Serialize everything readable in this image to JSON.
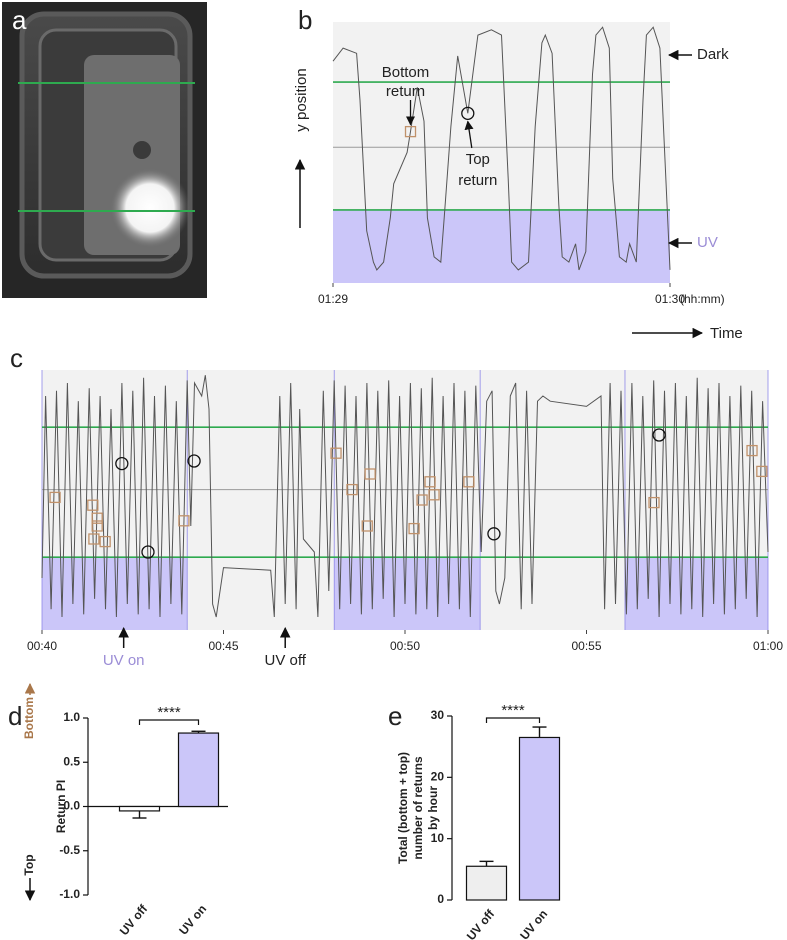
{
  "image_panel": {
    "label": "a"
  },
  "chart_data": [
    {
      "type": "line",
      "label": "b",
      "ylabel": "y position",
      "xlabel": "Time",
      "xunit": "(hh:mm)",
      "x": [
        89,
        89.03,
        89.07,
        89.08,
        89.1,
        89.12,
        89.13,
        89.15,
        89.17,
        89.18,
        89.22,
        89.23,
        89.25,
        89.27,
        89.28,
        89.3,
        89.32,
        89.33,
        89.35,
        89.37,
        89.4,
        89.42,
        89.43,
        89.47,
        89.5,
        89.52,
        89.53,
        89.55,
        89.58,
        89.6,
        89.62,
        89.63,
        89.65,
        89.67,
        89.68,
        89.7,
        89.72,
        89.73,
        89.75,
        89.77,
        89.78,
        89.8,
        89.82,
        89.83,
        89.85,
        89.87,
        89.88,
        89.9,
        89.92,
        89.93,
        89.95,
        89.97,
        90
      ],
      "values": [
        85,
        90,
        88,
        70,
        20,
        8,
        5,
        8,
        25,
        38,
        50,
        58,
        75,
        62,
        25,
        10,
        8,
        25,
        60,
        87,
        65,
        85,
        95,
        97,
        95,
        40,
        8,
        5,
        8,
        60,
        92,
        95,
        88,
        30,
        10,
        8,
        15,
        5,
        12,
        80,
        95,
        98,
        90,
        40,
        10,
        8,
        15,
        8,
        70,
        95,
        98,
        90,
        5
      ],
      "color": "#555555",
      "xlim": [
        89,
        90
      ],
      "xticks": [
        {
          "value": 89,
          "label": "01:29"
        },
        {
          "value": 90,
          "label": "01:30"
        }
      ],
      "ylim": [
        0,
        100
      ],
      "uv_level": 28,
      "dark_level": 77,
      "mid_level": 52,
      "region_colors": {
        "uv": "#cbc6f9",
        "dark": "#f2f2f2"
      },
      "threshold_color": "#2eaa4f",
      "bottom_returns": {
        "x": [
          89.23
        ],
        "values": [
          58
        ],
        "color": "#c0916a"
      },
      "top_returns": {
        "x": [
          89.4
        ],
        "values": [
          65
        ],
        "color": "#111111"
      },
      "annotations": {
        "dark": "Dark",
        "uv": "UV",
        "bottom_return": [
          "Bottom",
          "return"
        ],
        "top_return": [
          "Top",
          "return"
        ]
      },
      "uv_text_color": "#9b8dd6"
    },
    {
      "type": "line",
      "label": "c",
      "x": [
        40,
        40.1,
        40.25,
        40.4,
        40.55,
        40.7,
        40.85,
        41,
        41.15,
        41.3,
        41.45,
        41.6,
        41.75,
        41.9,
        42.05,
        42.2,
        42.35,
        42.5,
        42.65,
        42.8,
        42.95,
        43.1,
        43.25,
        43.4,
        43.55,
        43.7,
        43.85,
        44,
        44.1,
        44.2,
        44.4,
        44.5,
        44.6,
        44.7,
        44.8,
        45,
        46.3,
        46.4,
        46.55,
        46.7,
        46.85,
        47,
        47.1,
        47.2,
        47.5,
        47.6,
        47.75,
        47.9,
        48.05,
        48.2,
        48.35,
        48.5,
        48.65,
        48.8,
        48.95,
        49.1,
        49.25,
        49.4,
        49.55,
        49.7,
        49.85,
        50,
        50.15,
        50.3,
        50.45,
        50.6,
        50.75,
        50.9,
        51.05,
        51.2,
        51.35,
        51.5,
        51.65,
        51.8,
        51.95,
        52.1,
        52.25,
        52.4,
        52.5,
        52.6,
        52.75,
        52.9,
        53.05,
        53.2,
        53.35,
        53.5,
        53.65,
        53.8,
        54,
        55,
        55.4,
        55.5,
        55.65,
        55.8,
        55.95,
        56.1,
        56.25,
        56.4,
        56.55,
        56.7,
        56.85,
        57,
        57.15,
        57.3,
        57.45,
        57.6,
        57.75,
        57.9,
        58.05,
        58.2,
        58.35,
        58.5,
        58.65,
        58.8,
        58.95,
        59.1,
        59.25,
        59.4,
        59.55,
        59.7,
        59.85,
        60
      ],
      "values": [
        20,
        90,
        8,
        92,
        5,
        95,
        10,
        88,
        6,
        93,
        12,
        90,
        8,
        85,
        5,
        95,
        10,
        92,
        6,
        97,
        8,
        90,
        5,
        94,
        10,
        88,
        6,
        96,
        40,
        95,
        90,
        98,
        85,
        10,
        5,
        24,
        23,
        5,
        90,
        10,
        95,
        8,
        85,
        35,
        30,
        5,
        92,
        15,
        96,
        8,
        94,
        10,
        90,
        6,
        95,
        8,
        92,
        12,
        96,
        5,
        90,
        10,
        95,
        6,
        93,
        8,
        97,
        5,
        90,
        10,
        95,
        8,
        92,
        5,
        94,
        30,
        88,
        92,
        15,
        10,
        20,
        90,
        95,
        8,
        92,
        10,
        88,
        90,
        88,
        86,
        90,
        8,
        95,
        10,
        92,
        6,
        95,
        8,
        90,
        12,
        96,
        5,
        92,
        10,
        95,
        6,
        90,
        8,
        97,
        5,
        93,
        10,
        95,
        6,
        90,
        8,
        94,
        12,
        92,
        5,
        88,
        30
      ],
      "color": "#555555",
      "xlim": [
        40,
        60
      ],
      "xticks": [
        {
          "value": 40,
          "label": "00:40"
        },
        {
          "value": 45,
          "label": "00:45"
        },
        {
          "value": 50,
          "label": "00:50"
        },
        {
          "value": 55,
          "label": "00:55"
        },
        {
          "value": 60,
          "label": "01:00"
        }
      ],
      "ylim": [
        0,
        100
      ],
      "uv_level": 28,
      "dark_level": 78,
      "mid_level": 54,
      "uv_periods": [
        [
          40,
          44
        ],
        [
          48.05,
          52.07
        ],
        [
          56.06,
          60
        ]
      ],
      "region_colors": {
        "uv": "#cbc6f9",
        "dark": "#f2f2f2"
      },
      "threshold_color": "#2eaa4f",
      "period_line_color": "#8f88e8",
      "bottom_returns": {
        "x": [
          40.36,
          41.4,
          41.52,
          41.52,
          41.43,
          41.74,
          43.91,
          48.1,
          49.04,
          48.54,
          48.96,
          50.25,
          50.47,
          50.69,
          50.8,
          51.76,
          56.86,
          59.56,
          59.83
        ],
        "values": [
          51,
          48,
          43,
          40,
          35,
          34,
          42,
          68,
          60,
          54,
          40,
          39,
          50,
          57,
          52,
          57,
          49,
          69,
          61
        ],
        "color": "#c0916a"
      },
      "top_returns": {
        "x": [
          42.2,
          44.19,
          42.92,
          52.45,
          57
        ],
        "values": [
          64,
          65,
          30,
          37,
          75
        ],
        "color": "#111111"
      },
      "events": [
        {
          "text": "UV on",
          "x": 42.25,
          "color": "#9b8dd6"
        },
        {
          "text": "UV off",
          "x": 46.7,
          "color": "#222222"
        }
      ]
    },
    {
      "type": "bar",
      "label": "d",
      "ylabel": "Return PI",
      "up_label": "Bottom",
      "down_label": "Top",
      "up_color": "#a9774a",
      "categories": [
        "UV off",
        "UV on"
      ],
      "values": [
        -0.05,
        0.83
      ],
      "errors": [
        0.08,
        0.02
      ],
      "colors": [
        "#ffffff",
        "#cbc6f9"
      ],
      "ylim": [
        -1,
        1
      ],
      "yticks": [
        {
          "value": -1,
          "label": "-1.0"
        },
        -0.5,
        {
          "value": 0,
          "label": "0.0"
        },
        0.5,
        {
          "value": 1,
          "label": "1.0"
        }
      ],
      "significance": "****"
    },
    {
      "type": "bar",
      "label": "e",
      "ylabel": [
        "Total (bottom + top)",
        "number of returns",
        "by hour"
      ],
      "categories": [
        "UV off",
        "UV on"
      ],
      "values": [
        5.5,
        26.5
      ],
      "errors": [
        0.8,
        1.7
      ],
      "colors": [
        "#eeeeee",
        "#cbc6f9"
      ],
      "ylim": [
        0,
        30
      ],
      "yticks": [
        0,
        10,
        20,
        30
      ],
      "significance": "****"
    }
  ]
}
